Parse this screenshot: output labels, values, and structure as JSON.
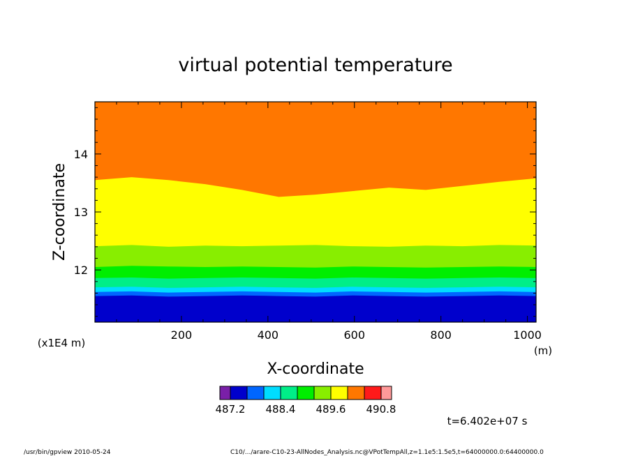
{
  "chart_data": {
    "type": "heatmap",
    "title": "virtual potential temperature",
    "xlabel": "X-coordinate",
    "xunit": "(m)",
    "ylabel": "Z-coordinate",
    "yunit": "(x1E4 m)",
    "xlim": [
      0,
      1020
    ],
    "ylim": [
      11.1,
      14.9
    ],
    "xticks": [
      200,
      400,
      600,
      800,
      1000
    ],
    "xticklabels": [
      "200",
      "400",
      "600",
      "800",
      "1000"
    ],
    "yticks": [
      12,
      13,
      14
    ],
    "yticklabels": [
      "12",
      "13",
      "14"
    ],
    "colorbar": {
      "colors": [
        "#7a1fa8",
        "#0000cc",
        "#0066ff",
        "#00ddff",
        "#00ee88",
        "#00ee00",
        "#88ee00",
        "#ffff00",
        "#ff7700",
        "#ff1a1a",
        "#ff9999"
      ],
      "labels": [
        "487.2",
        "488.4",
        "489.6",
        "490.8"
      ]
    },
    "bands": [
      {
        "color": "#0000cc",
        "top": [
          11.55,
          11.56,
          11.54,
          11.55,
          11.56,
          11.55,
          11.54,
          11.56,
          11.55,
          11.54,
          11.55,
          11.56,
          11.55
        ]
      },
      {
        "color": "#0066ff",
        "top": [
          11.62,
          11.63,
          11.61,
          11.62,
          11.63,
          11.62,
          11.61,
          11.63,
          11.62,
          11.61,
          11.62,
          11.63,
          11.62
        ]
      },
      {
        "color": "#00ddff",
        "top": [
          11.7,
          11.71,
          11.69,
          11.7,
          11.71,
          11.7,
          11.69,
          11.71,
          11.7,
          11.69,
          11.7,
          11.71,
          11.7
        ]
      },
      {
        "color": "#00ee88",
        "top": [
          11.86,
          11.87,
          11.85,
          11.86,
          11.87,
          11.86,
          11.85,
          11.87,
          11.86,
          11.85,
          11.86,
          11.87,
          11.86
        ]
      },
      {
        "color": "#00ee00",
        "top": [
          12.05,
          12.07,
          12.06,
          12.05,
          12.06,
          12.05,
          12.04,
          12.06,
          12.05,
          12.04,
          12.05,
          12.06,
          12.05
        ]
      },
      {
        "color": "#88ee00",
        "top": [
          12.41,
          12.43,
          12.4,
          12.42,
          12.41,
          12.42,
          12.43,
          12.41,
          12.4,
          12.42,
          12.41,
          12.43,
          12.42
        ]
      },
      {
        "color": "#ffff00",
        "top": [
          13.55,
          13.6,
          13.55,
          13.48,
          13.38,
          13.26,
          13.3,
          13.36,
          13.42,
          13.38,
          13.45,
          13.52,
          13.58
        ]
      },
      {
        "color": "#ff7700",
        "top": [
          14.9,
          14.9,
          14.9,
          14.9,
          14.9,
          14.9,
          14.9,
          14.9,
          14.9,
          14.9,
          14.9,
          14.9,
          14.9
        ]
      }
    ],
    "band_x": [
      0,
      85,
      170,
      255,
      340,
      425,
      510,
      595,
      680,
      765,
      850,
      935,
      1020
    ]
  },
  "time_label": "t=6.402e+07 s",
  "footer": {
    "left": "/usr/bin/gpview   2010-05-24",
    "right": "C10/.../arare-C10-23-AllNodes_Analysis.nc@VPotTempAll,z=1.1e5:1.5e5,t=64000000.0:64400000.0"
  }
}
